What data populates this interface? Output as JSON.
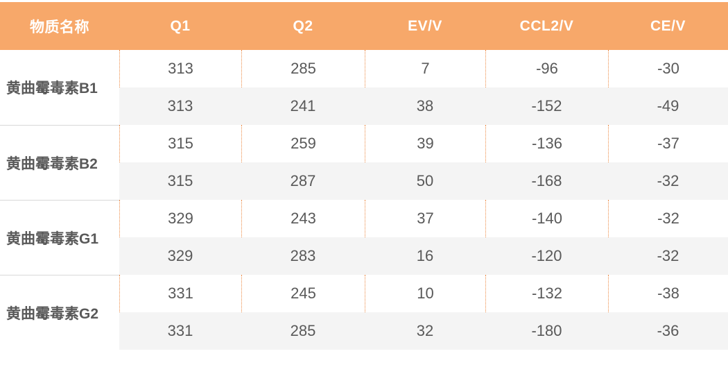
{
  "table": {
    "columns": [
      {
        "key": "name",
        "label": "物质名称"
      },
      {
        "key": "q1",
        "label": "Q1"
      },
      {
        "key": "q2",
        "label": "Q2"
      },
      {
        "key": "ev",
        "label": "EV/V"
      },
      {
        "key": "ccl2",
        "label": "CCL2/V"
      },
      {
        "key": "ce",
        "label": "CE/V"
      }
    ],
    "groups": [
      {
        "name": "黄曲霉毒素B1",
        "rows": [
          [
            313,
            285,
            7,
            -96,
            -30
          ],
          [
            313,
            241,
            38,
            -152,
            -49
          ]
        ]
      },
      {
        "name": "黄曲霉毒素B2",
        "rows": [
          [
            315,
            259,
            39,
            -136,
            -37
          ],
          [
            315,
            287,
            50,
            -168,
            -32
          ]
        ]
      },
      {
        "name": "黄曲霉毒素G1",
        "rows": [
          [
            329,
            243,
            37,
            -140,
            -32
          ],
          [
            329,
            283,
            16,
            -120,
            -32
          ]
        ]
      },
      {
        "name": "黄曲霉毒素G2",
        "rows": [
          [
            331,
            245,
            10,
            -132,
            -38
          ],
          [
            331,
            285,
            32,
            -180,
            -36
          ]
        ]
      }
    ],
    "colors": {
      "header_bg": "#F7A86A",
      "header_text": "#FFFFFF",
      "stripe_bg": "#F4F4F4",
      "cell_text": "#595959",
      "dotted_divider": "#ED8A44",
      "group_separator": "#D8D8D8"
    }
  },
  "chart_data": {
    "type": "table",
    "title": "",
    "columns": [
      "物质名称",
      "Q1",
      "Q2",
      "EV/V",
      "CCL2/V",
      "CE/V"
    ],
    "rows": [
      [
        "黄曲霉毒素B1",
        313,
        285,
        7,
        -96,
        -30
      ],
      [
        "黄曲霉毒素B1",
        313,
        241,
        38,
        -152,
        -49
      ],
      [
        "黄曲霉毒素B2",
        315,
        259,
        39,
        -136,
        -37
      ],
      [
        "黄曲霉毒素B2",
        315,
        287,
        50,
        -168,
        -32
      ],
      [
        "黄曲霉毒素G1",
        329,
        243,
        37,
        -140,
        -32
      ],
      [
        "黄曲霉毒素G1",
        329,
        283,
        16,
        -120,
        -32
      ],
      [
        "黄曲霉毒素G2",
        331,
        245,
        10,
        -132,
        -38
      ],
      [
        "黄曲霉毒素G2",
        331,
        285,
        32,
        -180,
        -36
      ]
    ]
  }
}
